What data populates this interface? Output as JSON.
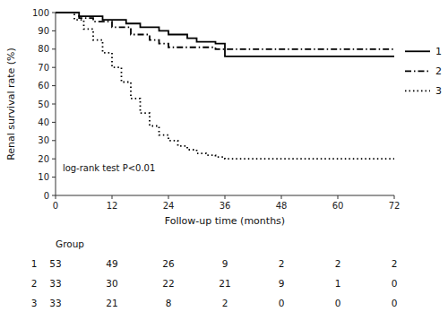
{
  "chart_data": {
    "type": "step",
    "xlabel": "Follow-up time (months)",
    "ylabel": "Renal survival rate (%)",
    "xlim": [
      0,
      72
    ],
    "ylim": [
      0,
      100
    ],
    "xticks": [
      0,
      12,
      24,
      36,
      48,
      60,
      72
    ],
    "yticks": [
      0,
      10,
      20,
      30,
      40,
      50,
      60,
      70,
      80,
      90,
      100
    ],
    "annotation": "log-rank test P<0.01",
    "grid": false,
    "legend": "right",
    "series": [
      {
        "name": "1",
        "color": "#000000",
        "line_style": "solid",
        "x": [
          0,
          5,
          10,
          15,
          18,
          22,
          24,
          28,
          30,
          34,
          36,
          72
        ],
        "values": [
          100,
          98,
          96,
          94,
          92,
          90,
          88,
          86,
          84,
          83,
          76,
          76
        ]
      },
      {
        "name": "2",
        "color": "#000000",
        "line_style": "dashdot",
        "x": [
          0,
          5,
          8,
          12,
          16,
          20,
          22,
          24,
          34,
          36,
          72
        ],
        "values": [
          100,
          97,
          95,
          92,
          88,
          85,
          83,
          81,
          80,
          80,
          80
        ]
      },
      {
        "name": "3",
        "color": "#000000",
        "line_style": "dotted",
        "x": [
          0,
          4,
          6,
          8,
          10,
          12,
          14,
          16,
          18,
          20,
          22,
          24,
          26,
          28,
          30,
          32,
          34,
          36,
          72
        ],
        "values": [
          100,
          96,
          91,
          85,
          78,
          70,
          62,
          53,
          45,
          38,
          33,
          30,
          27,
          25,
          23,
          22,
          21,
          20,
          20
        ]
      }
    ],
    "table": {
      "header": "Group",
      "times": [
        0,
        12,
        24,
        36,
        48,
        60,
        72
      ],
      "rows": [
        {
          "group": "1",
          "values": [
            53,
            49,
            26,
            9,
            2,
            2,
            2
          ]
        },
        {
          "group": "2",
          "values": [
            33,
            30,
            22,
            21,
            9,
            1,
            0
          ]
        },
        {
          "group": "3",
          "values": [
            33,
            21,
            8,
            2,
            0,
            0,
            0
          ]
        }
      ]
    }
  }
}
